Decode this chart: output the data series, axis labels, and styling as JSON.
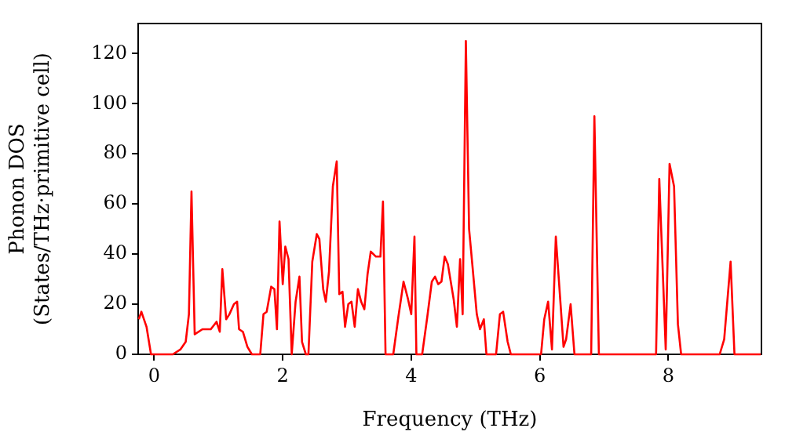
{
  "chart_data": {
    "type": "line",
    "xlabel": "Frequency (THz)",
    "ylabel": "Phonon DOS\n(States/THz·primitive cell)",
    "xlim": [
      -0.25,
      9.45
    ],
    "ylim": [
      0,
      132
    ],
    "xticks": [
      0,
      2,
      4,
      6,
      8
    ],
    "yticks": [
      0,
      20,
      40,
      60,
      80,
      100,
      120
    ],
    "grid": false,
    "legend": false,
    "marker": "none",
    "line_style": "solid",
    "series": [
      {
        "color": "#ff0000",
        "x": [
          -0.24,
          -0.2,
          -0.12,
          -0.05,
          0.29,
          0.41,
          0.49,
          0.54,
          0.58,
          0.63,
          0.75,
          0.88,
          0.97,
          1.02,
          1.06,
          1.12,
          1.17,
          1.24,
          1.29,
          1.32,
          1.38,
          1.45,
          1.52,
          1.65,
          1.7,
          1.75,
          1.82,
          1.87,
          1.91,
          1.95,
          2.0,
          2.04,
          2.09,
          2.14,
          2.2,
          2.26,
          2.3,
          2.36,
          2.4,
          2.46,
          2.53,
          2.57,
          2.63,
          2.67,
          2.72,
          2.78,
          2.84,
          2.88,
          2.93,
          2.97,
          3.02,
          3.07,
          3.12,
          3.17,
          3.22,
          3.27,
          3.32,
          3.37,
          3.45,
          3.52,
          3.56,
          3.6,
          3.72,
          3.8,
          3.88,
          3.95,
          4.0,
          4.05,
          4.08,
          4.17,
          4.25,
          4.32,
          4.37,
          4.42,
          4.47,
          4.52,
          4.57,
          4.66,
          4.71,
          4.76,
          4.8,
          4.85,
          4.9,
          4.95,
          5.02,
          5.07,
          5.13,
          5.17,
          5.32,
          5.38,
          5.43,
          5.5,
          5.55,
          6.02,
          6.07,
          6.13,
          6.19,
          6.25,
          6.27,
          6.37,
          6.41,
          6.48,
          6.54,
          6.8,
          6.85,
          6.92,
          7.81,
          7.86,
          7.96,
          8.02,
          8.09,
          8.15,
          8.2,
          8.8,
          8.87,
          8.97,
          9.03,
          9.44
        ],
        "values": [
          14,
          17,
          11,
          0,
          0,
          2,
          5,
          16,
          65,
          8,
          10,
          10,
          13,
          9,
          34,
          14,
          16,
          20,
          21,
          10,
          9,
          3,
          0,
          0,
          16,
          17,
          27,
          26,
          10,
          53,
          28,
          43,
          38,
          0,
          21,
          31,
          5,
          0,
          0,
          37,
          48,
          46,
          26,
          21,
          33,
          67,
          77,
          24,
          25,
          11,
          20,
          21,
          11,
          26,
          21,
          18,
          32,
          41,
          39,
          39,
          61,
          0,
          0,
          15,
          29,
          22,
          16,
          47,
          0,
          0,
          15,
          29,
          31,
          28,
          29,
          39,
          36,
          22,
          11,
          38,
          16,
          125,
          50,
          36,
          16,
          10,
          14,
          0,
          0,
          16,
          17,
          5,
          0,
          0,
          14,
          21,
          2,
          47,
          47,
          3,
          6,
          20,
          0,
          0,
          95,
          0,
          0,
          70,
          2,
          76,
          67,
          12,
          0,
          0,
          6,
          37,
          0,
          0
        ]
      }
    ]
  }
}
